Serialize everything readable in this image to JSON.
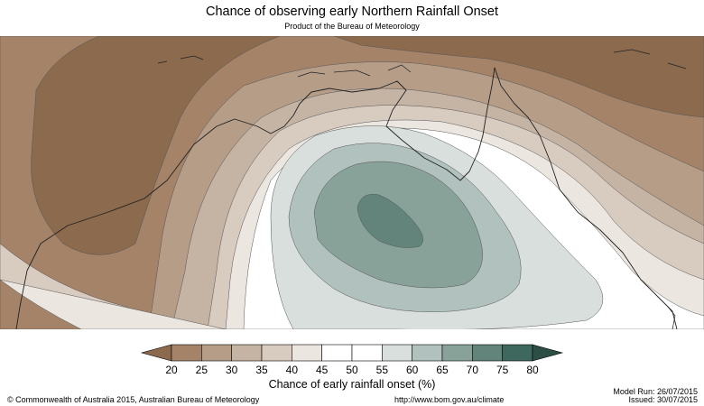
{
  "header": {
    "title": "Chance of observing early Northern Rainfall Onset",
    "subtitle": "Product of the Bureau of Meteorology"
  },
  "legend": {
    "title": "Chance of early rainfall onset (%)",
    "ticks": [
      "20",
      "25",
      "30",
      "35",
      "40",
      "45",
      "50",
      "55",
      "60",
      "65",
      "70",
      "75",
      "80"
    ],
    "colors": [
      "#a48369",
      "#b59d88",
      "#c5b3a4",
      "#d8cbc0",
      "#ece6e1",
      "#ffffff",
      "#ffffff",
      "#d9dfdd",
      "#b1c1bd",
      "#88a29a",
      "#62847a",
      "#3e675d"
    ],
    "under_color": "#8b6a4d",
    "over_color": "#2c4e45"
  },
  "footer": {
    "copyright": "© Commonwealth of Australia 2015, Australian Bureau of Meteorology",
    "url": "http://www.bom.gov.au/climate",
    "model_run": "Model Run: 26/07/2015",
    "issued": "Issued: 30/07/2015"
  }
}
